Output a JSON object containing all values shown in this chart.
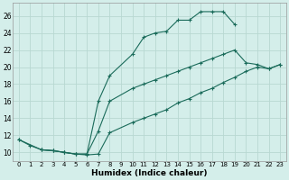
{
  "background_color": "#d4eeea",
  "grid_color": "#b8d8d2",
  "line_color": "#1a6b5a",
  "xlabel": "Humidex (Indice chaleur)",
  "xlim": [
    -0.5,
    23.5
  ],
  "ylim": [
    9.0,
    27.5
  ],
  "xticks": [
    0,
    1,
    2,
    3,
    4,
    5,
    6,
    7,
    8,
    9,
    10,
    11,
    12,
    13,
    14,
    15,
    16,
    17,
    18,
    19,
    20,
    21,
    22,
    23
  ],
  "yticks": [
    10,
    12,
    14,
    16,
    18,
    20,
    22,
    24,
    26
  ],
  "series": [
    {
      "x": [
        0,
        1,
        2,
        3,
        4,
        5,
        6,
        7,
        8,
        10,
        11,
        12,
        13,
        14,
        15,
        16,
        17,
        18,
        19
      ],
      "y": [
        11.5,
        10.8,
        10.3,
        10.2,
        10.0,
        9.8,
        9.8,
        16.0,
        19.0,
        21.5,
        23.5,
        24.0,
        24.2,
        25.5,
        25.5,
        26.5,
        26.5,
        26.5,
        25.0
      ]
    },
    {
      "x": [
        0,
        2,
        3,
        4,
        5,
        6,
        7,
        8,
        10,
        11,
        12,
        13,
        14,
        15,
        16,
        17,
        18,
        19,
        20,
        21,
        22,
        23
      ],
      "y": [
        11.5,
        10.3,
        10.2,
        10.0,
        9.8,
        9.8,
        12.5,
        16.0,
        17.5,
        18.0,
        18.5,
        19.0,
        19.5,
        20.0,
        20.5,
        21.0,
        21.5,
        22.0,
        20.5,
        20.3,
        19.8,
        20.3
      ]
    },
    {
      "x": [
        2,
        3,
        4,
        5,
        6,
        7,
        8,
        10,
        11,
        12,
        13,
        14,
        15,
        16,
        17,
        18,
        19,
        20,
        21,
        22,
        23
      ],
      "y": [
        10.3,
        10.2,
        10.0,
        9.8,
        9.7,
        9.8,
        12.3,
        13.5,
        14.0,
        14.5,
        15.0,
        15.8,
        16.3,
        17.0,
        17.5,
        18.2,
        18.8,
        19.5,
        20.0,
        19.8,
        20.3
      ]
    }
  ]
}
